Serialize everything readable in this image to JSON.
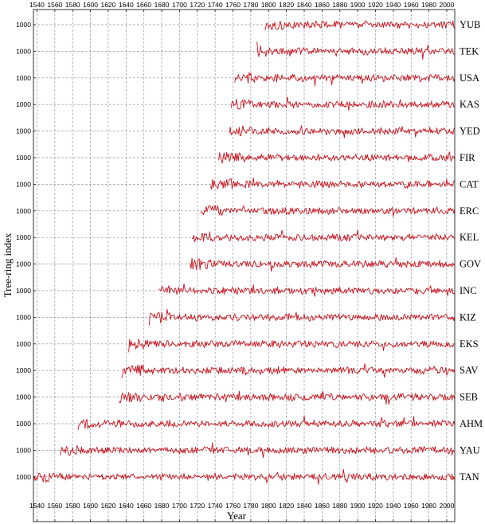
{
  "chart_data": {
    "type": "line",
    "xlabel": "Year",
    "ylabel": "Tree-ring index",
    "xlim": [
      1536,
      2009
    ],
    "x_ticks": [
      1540,
      1560,
      1580,
      1600,
      1620,
      1640,
      1660,
      1680,
      1700,
      1720,
      1740,
      1760,
      1780,
      1800,
      1820,
      1840,
      1860,
      1880,
      1900,
      1920,
      1940,
      1960,
      1980,
      2000
    ],
    "y_tick_label": "1000",
    "grid": true,
    "series": [
      {
        "name": "YUB",
        "start": 1796,
        "end": 2009
      },
      {
        "name": "TEK",
        "start": 1787,
        "end": 2009
      },
      {
        "name": "USA",
        "start": 1762,
        "end": 2009
      },
      {
        "name": "KAS",
        "start": 1758,
        "end": 2009
      },
      {
        "name": "YED",
        "start": 1756,
        "end": 2009
      },
      {
        "name": "FIR",
        "start": 1744,
        "end": 2009
      },
      {
        "name": "CAT",
        "start": 1735,
        "end": 2009
      },
      {
        "name": "ERC",
        "start": 1724,
        "end": 2009
      },
      {
        "name": "KEL",
        "start": 1714,
        "end": 2009
      },
      {
        "name": "GOV",
        "start": 1711,
        "end": 2009
      },
      {
        "name": "INC",
        "start": 1677,
        "end": 2009
      },
      {
        "name": "KIZ",
        "start": 1666,
        "end": 2009
      },
      {
        "name": "EKS",
        "start": 1643,
        "end": 2009
      },
      {
        "name": "SAV",
        "start": 1635,
        "end": 2009
      },
      {
        "name": "SEB",
        "start": 1632,
        "end": 2009
      },
      {
        "name": "AHM",
        "start": 1586,
        "end": 2009
      },
      {
        "name": "YAU",
        "start": 1566,
        "end": 2009
      },
      {
        "name": "TAN",
        "start": 1536,
        "end": 2009
      }
    ]
  }
}
